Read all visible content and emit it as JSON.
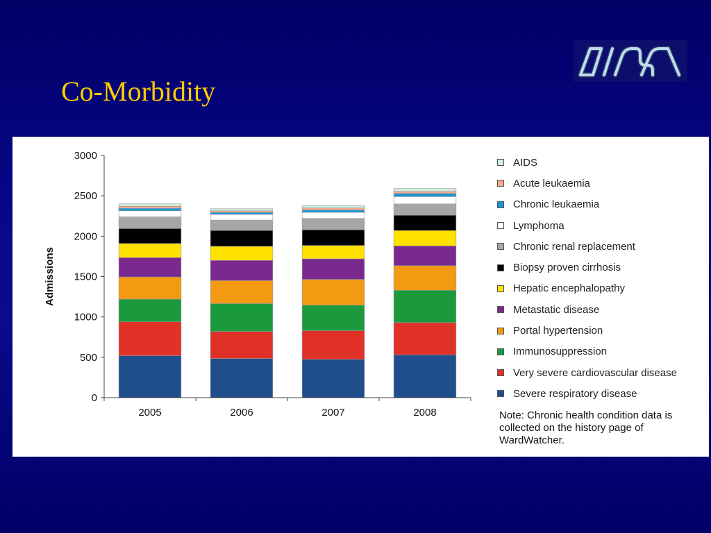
{
  "slide": {
    "title": "Co-Morbidity",
    "title_color": "#ffcc00",
    "background_color": "#000080",
    "logo_color": "#b9dcef"
  },
  "chart_data": {
    "type": "bar",
    "stacked": true,
    "categories": [
      "2005",
      "2006",
      "2007",
      "2008"
    ],
    "ylabel": "Admissions",
    "xlabel": "",
    "ylim": [
      0,
      3000
    ],
    "yticks": [
      0,
      500,
      1000,
      1500,
      2000,
      2500,
      3000
    ],
    "grid": false,
    "legend_position": "right",
    "series": [
      {
        "name": "Severe respiratory disease",
        "color": "#1f4e8c",
        "values": [
          520,
          485,
          475,
          530
        ]
      },
      {
        "name": "Very severe cardiovascular disease",
        "color": "#e03127",
        "values": [
          420,
          335,
          355,
          400
        ]
      },
      {
        "name": "Immunosuppression",
        "color": "#1a9a3c",
        "values": [
          280,
          345,
          315,
          400
        ]
      },
      {
        "name": "Portal hypertension",
        "color": "#f39a12",
        "values": [
          275,
          285,
          320,
          305
        ]
      },
      {
        "name": "Metastatic disease",
        "color": "#7a2a8e",
        "values": [
          240,
          250,
          255,
          245
        ]
      },
      {
        "name": "Hepatic encephalopathy",
        "color": "#ffe200",
        "values": [
          175,
          175,
          165,
          190
        ]
      },
      {
        "name": "Biopsy proven cirrhosis",
        "color": "#000000",
        "values": [
          185,
          195,
          195,
          190
        ]
      },
      {
        "name": "Chronic renal replacement",
        "color": "#a6a6a6",
        "values": [
          145,
          130,
          140,
          140
        ]
      },
      {
        "name": "Lymphoma",
        "color": "#ffffff",
        "values": [
          75,
          70,
          75,
          90
        ]
      },
      {
        "name": "Chronic leukaemia",
        "color": "#1a96d4",
        "values": [
          30,
          25,
          30,
          40
        ]
      },
      {
        "name": "Acute leukaemia",
        "color": "#f7a98a",
        "values": [
          25,
          20,
          25,
          25
        ]
      },
      {
        "name": "AIDS",
        "color": "#cfeedd",
        "values": [
          30,
          25,
          30,
          35
        ]
      }
    ]
  },
  "legend_order": [
    11,
    10,
    9,
    8,
    7,
    6,
    5,
    4,
    3,
    2,
    1,
    0
  ],
  "note": "Note: Chronic health condition data is collected on the history page of WardWatcher."
}
